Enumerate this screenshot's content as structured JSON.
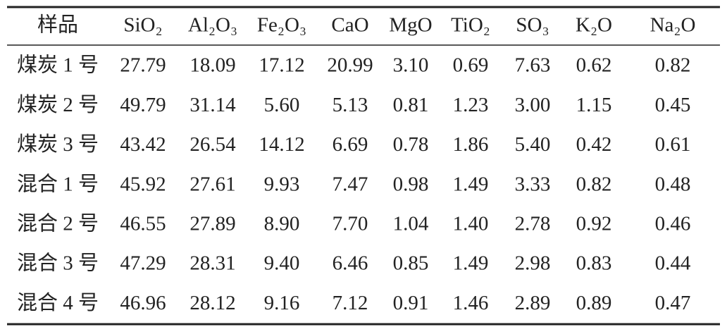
{
  "table": {
    "header": [
      "样品",
      "SiO₂",
      "Al₂O₃",
      "Fe₂O₃",
      "CaO",
      "MgO",
      "TiO₂",
      "SO₃",
      "K₂O",
      "Na₂O"
    ],
    "rows": [
      [
        "煤炭 1 号",
        "27.79",
        "18.09",
        "17.12",
        "20.99",
        "3.10",
        "0.69",
        "7.63",
        "0.62",
        "0.82"
      ],
      [
        "煤炭 2 号",
        "49.79",
        "31.14",
        "5.60",
        "5.13",
        "0.81",
        "1.23",
        "3.00",
        "1.15",
        "0.45"
      ],
      [
        "煤炭 3 号",
        "43.42",
        "26.54",
        "14.12",
        "6.69",
        "0.78",
        "1.86",
        "5.40",
        "0.42",
        "0.61"
      ],
      [
        "混合 1 号",
        "45.92",
        "27.61",
        "9.93",
        "7.47",
        "0.98",
        "1.49",
        "3.33",
        "0.82",
        "0.48"
      ],
      [
        "混合 2 号",
        "46.55",
        "27.89",
        "8.90",
        "7.70",
        "1.04",
        "1.40",
        "2.78",
        "0.92",
        "0.46"
      ],
      [
        "混合 3 号",
        "47.29",
        "28.31",
        "9.40",
        "6.46",
        "0.85",
        "1.49",
        "2.98",
        "0.83",
        "0.44"
      ],
      [
        "混合 4 号",
        "46.96",
        "28.12",
        "9.16",
        "7.12",
        "0.91",
        "1.46",
        "2.89",
        "0.89",
        "0.47"
      ]
    ]
  }
}
